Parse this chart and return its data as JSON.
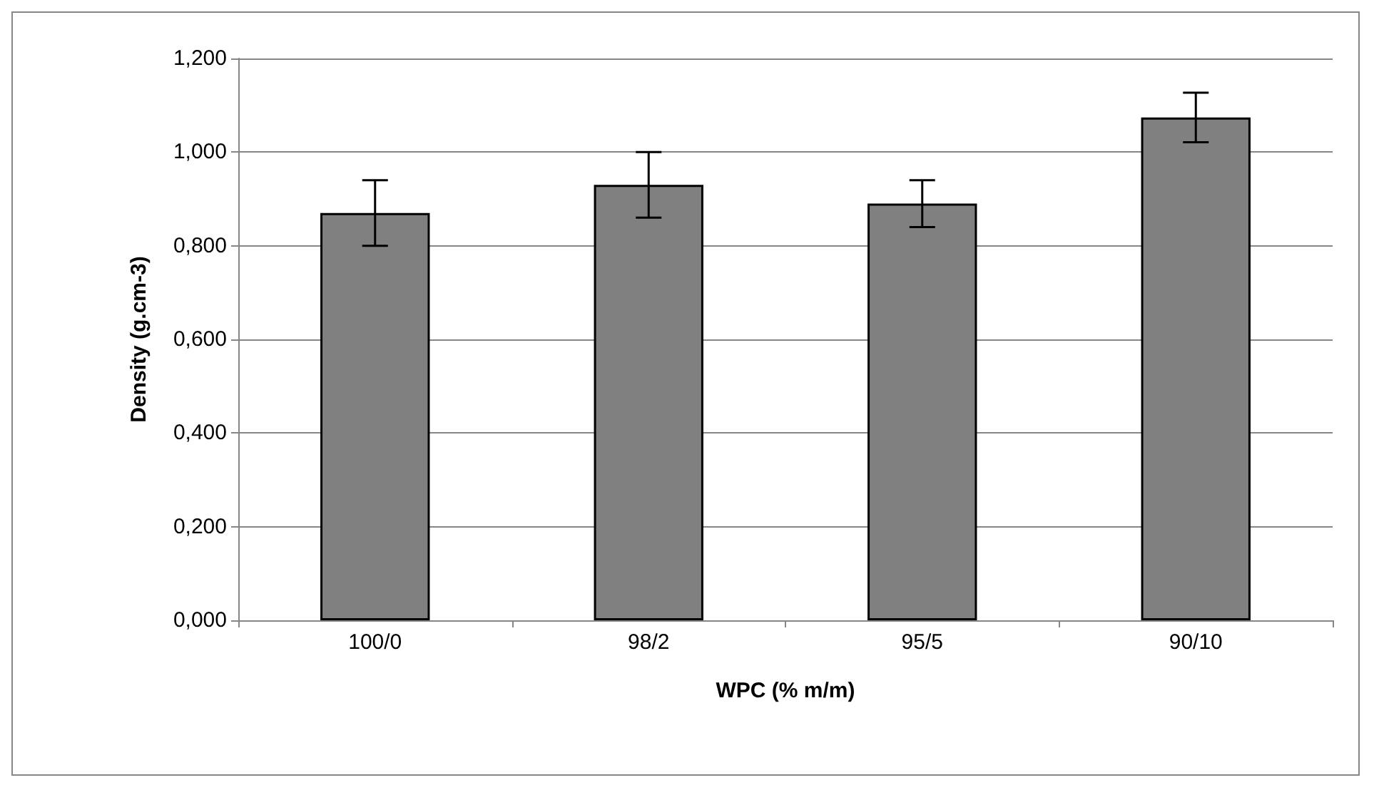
{
  "chart_data": {
    "type": "bar",
    "xlabel": "WPC (% m/m)",
    "ylabel": "Density (g.cm-3)",
    "categories": [
      "100/0",
      "98/2",
      "95/5",
      "90/10"
    ],
    "values": [
      0.87,
      0.93,
      0.89,
      1.074
    ],
    "errors": [
      0.07,
      0.07,
      0.05,
      0.053
    ],
    "color": "#808080",
    "ylim": [
      0,
      1.2
    ],
    "yticks": [
      {
        "value": 0,
        "label": "0,000"
      },
      {
        "value": 0.2,
        "label": "0,200"
      },
      {
        "value": 0.4,
        "label": "0,400"
      },
      {
        "value": 0.6,
        "label": "0,600"
      },
      {
        "value": 0.8,
        "label": "0,800"
      },
      {
        "value": 1,
        "label": "1,000"
      },
      {
        "value": 1.2,
        "label": "1,200"
      }
    ],
    "grid": "y"
  }
}
